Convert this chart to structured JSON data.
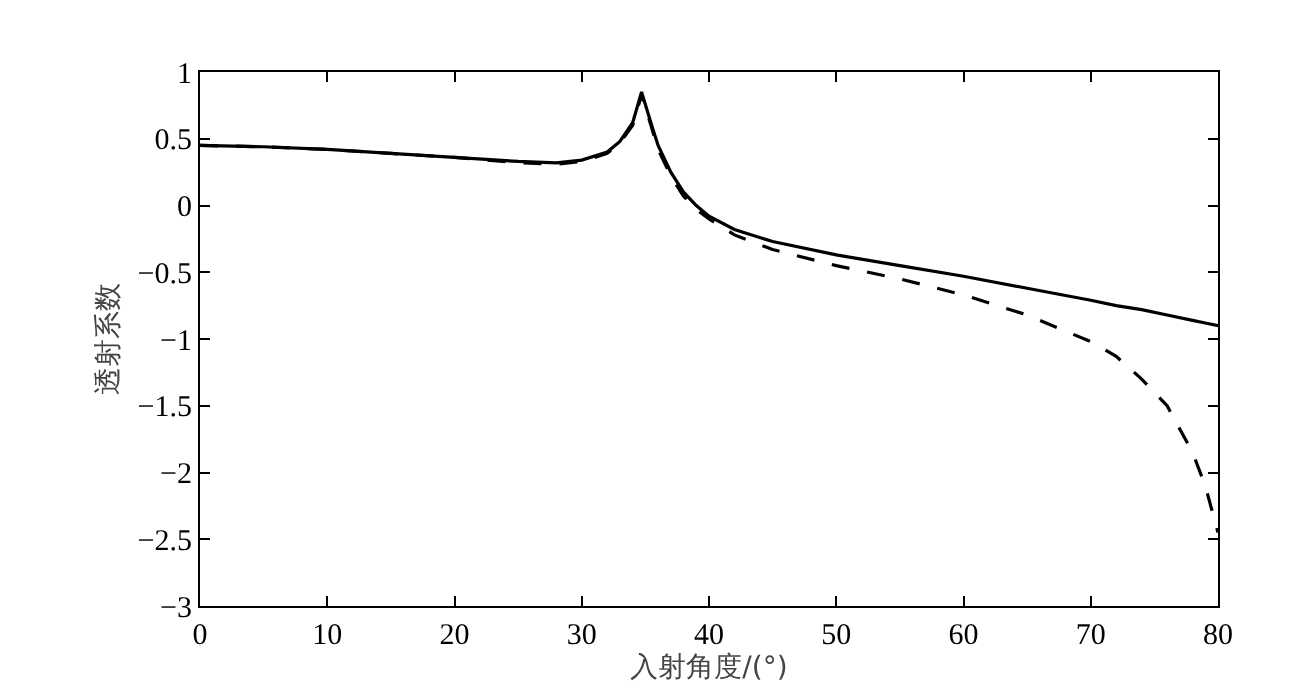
{
  "chart_data": {
    "type": "line",
    "xlabel": "入射角度/(°)",
    "ylabel": "透射系数",
    "x": [
      0,
      5,
      10,
      15,
      20,
      25,
      28,
      30,
      32,
      33,
      34,
      34.7,
      35.5,
      36,
      37,
      38,
      39,
      40,
      42,
      45,
      50,
      55,
      60,
      65,
      70,
      72,
      74,
      76,
      78,
      79,
      80
    ],
    "series": [
      {
        "color": "#000000",
        "line_style": "solid",
        "values": [
          0.45,
          0.44,
          0.42,
          0.39,
          0.36,
          0.33,
          0.32,
          0.34,
          0.4,
          0.48,
          0.62,
          0.85,
          0.6,
          0.45,
          0.25,
          0.1,
          0,
          -0.08,
          -0.18,
          -0.27,
          -0.37,
          -0.45,
          -0.53,
          -0.62,
          -0.71,
          -0.75,
          -0.78,
          -0.82,
          -0.86,
          -0.88,
          -0.9
        ]
      },
      {
        "color": "#000000",
        "line_style": "dashed",
        "values": [
          0.45,
          0.44,
          0.42,
          0.39,
          0.36,
          0.32,
          0.31,
          0.33,
          0.39,
          0.47,
          0.6,
          0.83,
          0.58,
          0.42,
          0.22,
          0.07,
          -0.03,
          -0.1,
          -0.22,
          -0.33,
          -0.45,
          -0.55,
          -0.67,
          -0.82,
          -1.02,
          -1.13,
          -1.3,
          -1.5,
          -1.85,
          -2.1,
          -2.45
        ]
      }
    ],
    "xlim": [
      0,
      80
    ],
    "xticks": [
      0,
      10,
      20,
      30,
      40,
      50,
      60,
      70,
      80
    ],
    "ylim": [
      -3,
      1
    ],
    "yticks": [
      -3,
      -2.5,
      -2,
      -1.5,
      -1,
      -0.5,
      0,
      0.5,
      1
    ],
    "grid": false,
    "marker": "none"
  }
}
